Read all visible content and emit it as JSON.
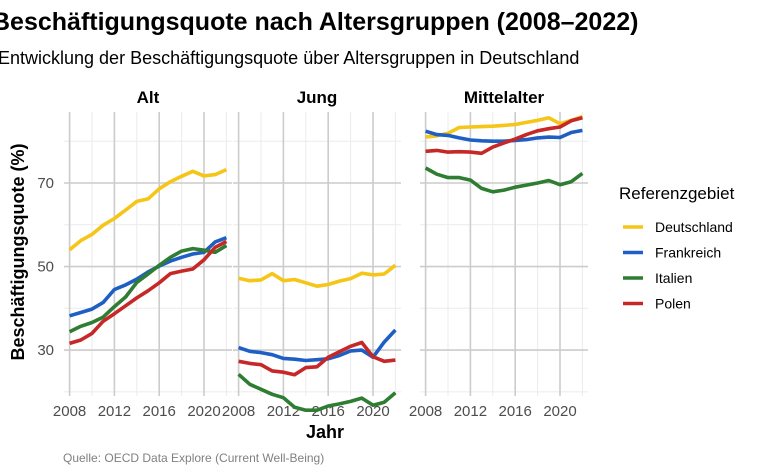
{
  "colors": {
    "Deutschland": "#F5C518",
    "Frankreich": "#1F5FC4",
    "Italien": "#2E7D32",
    "Polen": "#C62828"
  },
  "chart_data": {
    "type": "line",
    "title": "Beschäftigungsquote nach Altersgruppen (2008–2022)",
    "subtitle": "Entwicklung der Beschäftigungsquote über Altersgruppen in Deutschland",
    "xlabel": "Jahr",
    "ylabel": "Beschäftigungsquote (%)",
    "caption": "Quelle: OECD Data Explore (Current Well-Being)",
    "legend_title": "Referenzgebiet",
    "legend_position": "right",
    "grid": true,
    "x": [
      2008,
      2009,
      2010,
      2011,
      2012,
      2013,
      2014,
      2015,
      2016,
      2017,
      2018,
      2019,
      2020,
      2021,
      2022
    ],
    "xticks": [
      2008,
      2012,
      2016,
      2020
    ],
    "ylim": [
      19,
      87
    ],
    "yticks": [
      30,
      50,
      70
    ],
    "panels": [
      {
        "name": "Alt",
        "series": [
          {
            "name": "Deutschland",
            "values": [
              54.0,
              56.2,
              57.7,
              59.9,
              61.5,
              63.5,
              65.6,
              66.2,
              68.6,
              70.3,
              71.6,
              72.8,
              71.7,
              72.0,
              73.2
            ]
          },
          {
            "name": "Frankreich",
            "values": [
              38.2,
              39.0,
              39.8,
              41.4,
              44.5,
              45.6,
              47.0,
              48.7,
              50.1,
              51.3,
              52.2,
              53.0,
              53.4,
              55.9,
              56.9
            ]
          },
          {
            "name": "Italien",
            "values": [
              34.4,
              35.7,
              36.6,
              37.9,
              40.4,
              42.7,
              46.2,
              48.2,
              50.3,
              52.2,
              53.7,
              54.3,
              53.9,
              53.4,
              55.0
            ]
          },
          {
            "name": "Polen",
            "values": [
              31.6,
              32.4,
              34.0,
              36.9,
              38.7,
              40.6,
              42.5,
              44.2,
              46.1,
              48.3,
              48.9,
              49.4,
              51.6,
              54.6,
              56.0
            ]
          }
        ]
      },
      {
        "name": "Jung",
        "series": [
          {
            "name": "Deutschland",
            "values": [
              47.2,
              46.6,
              46.8,
              48.3,
              46.6,
              46.9,
              46.1,
              45.3,
              45.7,
              46.5,
              47.1,
              48.4,
              48.0,
              48.2,
              50.3
            ]
          },
          {
            "name": "Frankreich",
            "values": [
              30.6,
              29.7,
              29.4,
              28.9,
              28.0,
              27.8,
              27.5,
              27.7,
              27.9,
              28.7,
              29.8,
              30.0,
              28.3,
              31.9,
              34.8
            ]
          },
          {
            "name": "Italien",
            "values": [
              24.2,
              21.8,
              20.6,
              19.4,
              18.6,
              16.3,
              15.6,
              15.6,
              16.6,
              17.1,
              17.7,
              18.5,
              16.8,
              17.5,
              19.8
            ]
          },
          {
            "name": "Polen",
            "values": [
              27.3,
              26.8,
              26.5,
              25.0,
              24.7,
              24.1,
              25.8,
              26.0,
              28.3,
              29.6,
              30.9,
              31.8,
              28.4,
              27.3,
              27.6
            ]
          }
        ]
      },
      {
        "name": "Mittelalter",
        "series": [
          {
            "name": "Deutschland",
            "values": [
              81.0,
              81.3,
              81.9,
              83.3,
              83.4,
              83.5,
              83.6,
              83.8,
              84.0,
              84.5,
              85.0,
              85.6,
              84.2,
              85.0,
              85.9
            ]
          },
          {
            "name": "Frankreich",
            "values": [
              82.4,
              81.6,
              81.4,
              80.8,
              80.3,
              80.1,
              80.0,
              80.0,
              80.2,
              80.4,
              80.8,
              81.0,
              80.9,
              82.1,
              82.6
            ]
          },
          {
            "name": "Italien",
            "values": [
              73.6,
              72.1,
              71.3,
              71.3,
              70.7,
              68.7,
              67.9,
              68.3,
              69.0,
              69.5,
              70.0,
              70.6,
              69.6,
              70.3,
              72.3
            ]
          },
          {
            "name": "Polen",
            "values": [
              77.6,
              77.8,
              77.4,
              77.5,
              77.4,
              77.1,
              78.6,
              79.6,
              80.5,
              81.6,
              82.5,
              83.0,
              83.4,
              84.9,
              85.6
            ]
          }
        ]
      }
    ]
  }
}
